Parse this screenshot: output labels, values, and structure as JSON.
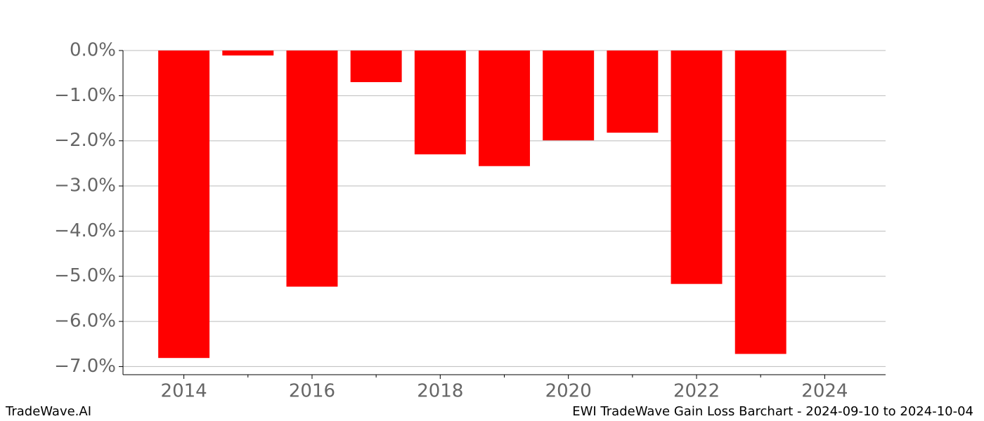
{
  "chart_data": {
    "type": "bar",
    "x": [
      2014,
      2015,
      2016,
      2017,
      2018,
      2019,
      2020,
      2021,
      2022,
      2023
    ],
    "values": [
      -6.81,
      -0.11,
      -5.23,
      -0.7,
      -2.3,
      -2.56,
      -1.99,
      -1.82,
      -5.17,
      -6.72
    ],
    "color": "#ff0000",
    "xlim": [
      2013.05,
      2024.95
    ],
    "xticks": [
      2014,
      2016,
      2018,
      2020,
      2022,
      2024
    ],
    "xticks_minor": [
      2015,
      2017,
      2019,
      2021,
      2023
    ],
    "ylim": [
      -7.18,
      0
    ],
    "yticks": [
      {
        "value": 0,
        "label": "0.0%"
      },
      {
        "value": -1,
        "label": "−1.0%"
      },
      {
        "value": -2,
        "label": "−2.0%"
      },
      {
        "value": -3,
        "label": "−3.0%"
      },
      {
        "value": -4,
        "label": "−4.0%"
      },
      {
        "value": -5,
        "label": "−5.0%"
      },
      {
        "value": -6,
        "label": "−6.0%"
      },
      {
        "value": -7,
        "label": "−7.0%"
      }
    ],
    "grid": true,
    "footer_left": "TradeWave.AI",
    "footer_right": "EWI TradeWave Gain Loss Barchart - 2024-09-10 to 2024-10-04"
  }
}
